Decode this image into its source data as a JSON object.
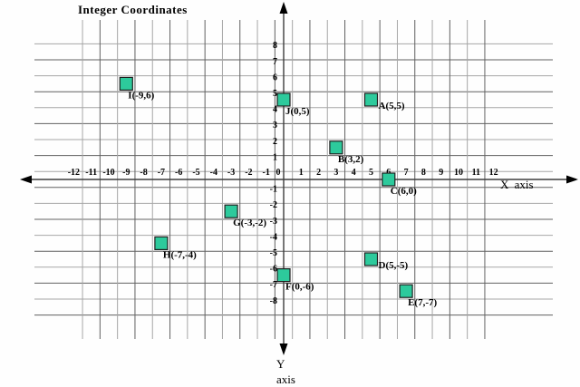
{
  "title": "Integer Coordinates",
  "axes": {
    "x_label": "X axis",
    "y_label_line1": "Y",
    "y_label_line2": "axis"
  },
  "chart_data": {
    "type": "scatter",
    "title": "Integer Coordinates",
    "xlabel": "X axis",
    "ylabel": "Y axis",
    "xlim": [
      -12,
      12
    ],
    "ylim": [
      -8,
      8
    ],
    "grid": true,
    "x_ticks": [
      -12,
      -11,
      -10,
      -9,
      -8,
      -7,
      -6,
      -5,
      -4,
      -3,
      -2,
      -1,
      0,
      1,
      2,
      3,
      4,
      5,
      6,
      7,
      8,
      9,
      10,
      11,
      12
    ],
    "y_ticks": [
      8,
      7,
      6,
      5,
      4,
      3,
      2,
      1,
      -1,
      -2,
      -3,
      -4,
      -5,
      -6,
      -7,
      -8
    ],
    "marker": {
      "shape": "square",
      "color": "#2DCA9C",
      "border": "#1f1f1f"
    },
    "grid_color_dark": "#616161",
    "grid_color_light": "#a6a6a6",
    "axis_color": "#3d3d3d",
    "points": [
      {
        "name": "A",
        "x": 5,
        "y": 5,
        "label": "A(5,5)"
      },
      {
        "name": "B",
        "x": 3,
        "y": 2,
        "label": "B(3,2)"
      },
      {
        "name": "C",
        "x": 6,
        "y": 0,
        "label": "C(6,0)"
      },
      {
        "name": "D",
        "x": 5,
        "y": -5,
        "label": "D(5,-5)"
      },
      {
        "name": "E",
        "x": 7,
        "y": -7,
        "label": "E(7,-7)"
      },
      {
        "name": "F",
        "x": 0,
        "y": -6,
        "label": "F(0,-6)"
      },
      {
        "name": "G",
        "x": -3,
        "y": -2,
        "label": "G(-3,-2)"
      },
      {
        "name": "H",
        "x": -7,
        "y": -4,
        "label": "H(-7,-4)"
      },
      {
        "name": "I",
        "x": -9,
        "y": 6,
        "label": "I(-9,6)"
      },
      {
        "name": "J",
        "x": 0,
        "y": 5,
        "label": "J(0,5)"
      }
    ]
  }
}
